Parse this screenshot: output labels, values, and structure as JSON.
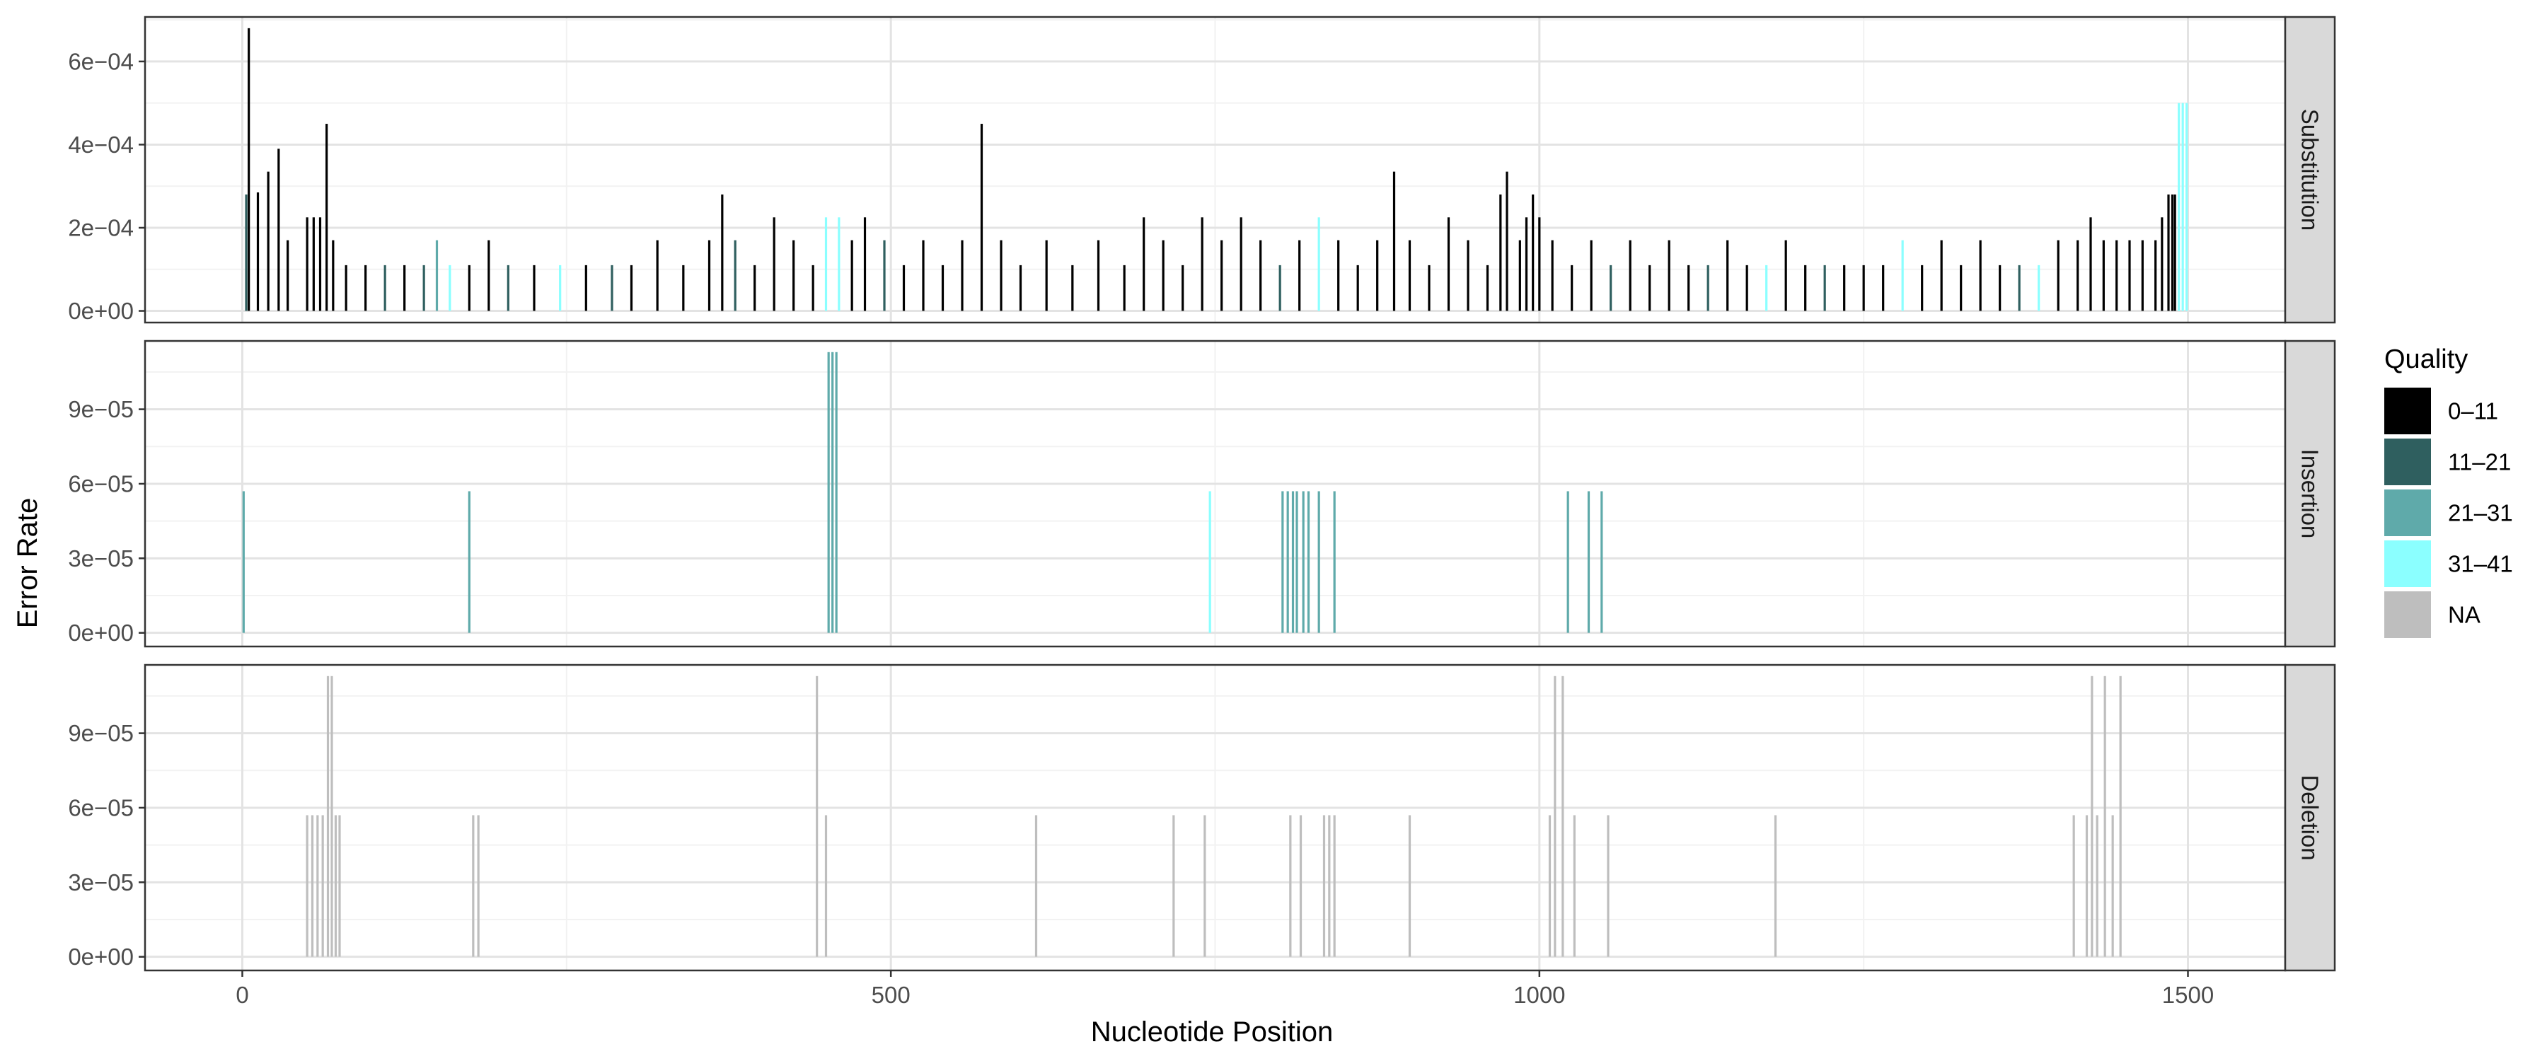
{
  "chart_data": {
    "type": "bar",
    "xlabel": "Nucleotide Position",
    "ylabel": "Error Rate",
    "xlim": [
      -75,
      1575
    ],
    "x_ticks": [
      0,
      500,
      1000,
      1500
    ],
    "x_tick_labels": [
      "0",
      "500",
      "1000",
      "1500"
    ],
    "grid": true,
    "legend": {
      "title": "Quality",
      "placement": "right",
      "entries": [
        {
          "label": "0–11",
          "color": "#000000"
        },
        {
          "label": "11–21",
          "color": "#2F5F5F"
        },
        {
          "label": "21–31",
          "color": "#5FAAAA"
        },
        {
          "label": "31–41",
          "color": "#8BFFFF"
        },
        {
          "label": "NA",
          "color": "#BEBEBE"
        }
      ]
    },
    "panels": [
      {
        "strip": "Substitution",
        "ylim": [
          -2.8e-05,
          0.000707
        ],
        "y_ticks": [
          0,
          0.0002,
          0.0004,
          0.0006
        ],
        "y_tick_labels": [
          "0e+00",
          "2e−04",
          "4e−04",
          "6e−04"
        ],
        "bars": [
          {
            "x": 5,
            "y": 0.00068,
            "q": 0
          },
          {
            "x": 12,
            "y": 0.000285,
            "q": 0
          },
          {
            "x": 20,
            "y": 0.000335,
            "q": 0
          },
          {
            "x": 28,
            "y": 0.00039,
            "q": 0
          },
          {
            "x": 65,
            "y": 0.00045,
            "q": 0
          },
          {
            "x": 3,
            "y": 0.00028,
            "q": 1
          },
          {
            "x": 35,
            "y": 0.00017,
            "q": 0
          },
          {
            "x": 50,
            "y": 0.000225,
            "q": 0
          },
          {
            "x": 55,
            "y": 0.000225,
            "q": 0
          },
          {
            "x": 60,
            "y": 0.000225,
            "q": 0
          },
          {
            "x": 70,
            "y": 0.00017,
            "q": 0
          },
          {
            "x": 80,
            "y": 0.00011,
            "q": 0
          },
          {
            "x": 95,
            "y": 0.00011,
            "q": 0
          },
          {
            "x": 110,
            "y": 0.00011,
            "q": 1
          },
          {
            "x": 125,
            "y": 0.00011,
            "q": 0
          },
          {
            "x": 140,
            "y": 0.00011,
            "q": 1
          },
          {
            "x": 150,
            "y": 0.00017,
            "q": 2
          },
          {
            "x": 160,
            "y": 0.00011,
            "q": 3
          },
          {
            "x": 175,
            "y": 0.00011,
            "q": 0
          },
          {
            "x": 190,
            "y": 0.00017,
            "q": 0
          },
          {
            "x": 205,
            "y": 0.00011,
            "q": 1
          },
          {
            "x": 225,
            "y": 0.00011,
            "q": 0
          },
          {
            "x": 245,
            "y": 0.00011,
            "q": 3
          },
          {
            "x": 265,
            "y": 0.00011,
            "q": 0
          },
          {
            "x": 285,
            "y": 0.00011,
            "q": 1
          },
          {
            "x": 300,
            "y": 0.00011,
            "q": 0
          },
          {
            "x": 320,
            "y": 0.00017,
            "q": 0
          },
          {
            "x": 340,
            "y": 0.00011,
            "q": 0
          },
          {
            "x": 360,
            "y": 0.00017,
            "q": 0
          },
          {
            "x": 370,
            "y": 0.00028,
            "q": 0
          },
          {
            "x": 380,
            "y": 0.00017,
            "q": 1
          },
          {
            "x": 395,
            "y": 0.00011,
            "q": 0
          },
          {
            "x": 410,
            "y": 0.000225,
            "q": 0
          },
          {
            "x": 425,
            "y": 0.00017,
            "q": 0
          },
          {
            "x": 440,
            "y": 0.00011,
            "q": 0
          },
          {
            "x": 450,
            "y": 0.000225,
            "q": 3
          },
          {
            "x": 460,
            "y": 0.000225,
            "q": 3
          },
          {
            "x": 470,
            "y": 0.00017,
            "q": 0
          },
          {
            "x": 480,
            "y": 0.000225,
            "q": 0
          },
          {
            "x": 495,
            "y": 0.00017,
            "q": 1
          },
          {
            "x": 510,
            "y": 0.00011,
            "q": 0
          },
          {
            "x": 525,
            "y": 0.00017,
            "q": 0
          },
          {
            "x": 540,
            "y": 0.00011,
            "q": 0
          },
          {
            "x": 555,
            "y": 0.00017,
            "q": 0
          },
          {
            "x": 570,
            "y": 0.00045,
            "q": 0
          },
          {
            "x": 585,
            "y": 0.00017,
            "q": 0
          },
          {
            "x": 600,
            "y": 0.00011,
            "q": 0
          },
          {
            "x": 620,
            "y": 0.00017,
            "q": 0
          },
          {
            "x": 640,
            "y": 0.00011,
            "q": 0
          },
          {
            "x": 660,
            "y": 0.00017,
            "q": 0
          },
          {
            "x": 680,
            "y": 0.00011,
            "q": 0
          },
          {
            "x": 695,
            "y": 0.000225,
            "q": 0
          },
          {
            "x": 710,
            "y": 0.00017,
            "q": 0
          },
          {
            "x": 725,
            "y": 0.00011,
            "q": 0
          },
          {
            "x": 740,
            "y": 0.000225,
            "q": 0
          },
          {
            "x": 755,
            "y": 0.00017,
            "q": 0
          },
          {
            "x": 770,
            "y": 0.000225,
            "q": 0
          },
          {
            "x": 785,
            "y": 0.00017,
            "q": 0
          },
          {
            "x": 800,
            "y": 0.00011,
            "q": 1
          },
          {
            "x": 815,
            "y": 0.00017,
            "q": 0
          },
          {
            "x": 830,
            "y": 0.000225,
            "q": 3
          },
          {
            "x": 845,
            "y": 0.00017,
            "q": 0
          },
          {
            "x": 860,
            "y": 0.00011,
            "q": 0
          },
          {
            "x": 875,
            "y": 0.00017,
            "q": 0
          },
          {
            "x": 888,
            "y": 0.000335,
            "q": 0
          },
          {
            "x": 900,
            "y": 0.00017,
            "q": 0
          },
          {
            "x": 915,
            "y": 0.00011,
            "q": 0
          },
          {
            "x": 930,
            "y": 0.000225,
            "q": 0
          },
          {
            "x": 945,
            "y": 0.00017,
            "q": 0
          },
          {
            "x": 960,
            "y": 0.00011,
            "q": 0
          },
          {
            "x": 970,
            "y": 0.00028,
            "q": 0
          },
          {
            "x": 975,
            "y": 0.000335,
            "q": 0
          },
          {
            "x": 985,
            "y": 0.00017,
            "q": 0
          },
          {
            "x": 990,
            "y": 0.000225,
            "q": 0
          },
          {
            "x": 995,
            "y": 0.00028,
            "q": 0
          },
          {
            "x": 1000,
            "y": 0.000225,
            "q": 0
          },
          {
            "x": 1010,
            "y": 0.00017,
            "q": 0
          },
          {
            "x": 1025,
            "y": 0.00011,
            "q": 0
          },
          {
            "x": 1040,
            "y": 0.00017,
            "q": 0
          },
          {
            "x": 1055,
            "y": 0.00011,
            "q": 1
          },
          {
            "x": 1070,
            "y": 0.00017,
            "q": 0
          },
          {
            "x": 1085,
            "y": 0.00011,
            "q": 0
          },
          {
            "x": 1100,
            "y": 0.00017,
            "q": 0
          },
          {
            "x": 1115,
            "y": 0.00011,
            "q": 0
          },
          {
            "x": 1130,
            "y": 0.00011,
            "q": 1
          },
          {
            "x": 1145,
            "y": 0.00017,
            "q": 0
          },
          {
            "x": 1160,
            "y": 0.00011,
            "q": 0
          },
          {
            "x": 1175,
            "y": 0.00011,
            "q": 3
          },
          {
            "x": 1190,
            "y": 0.00017,
            "q": 0
          },
          {
            "x": 1205,
            "y": 0.00011,
            "q": 0
          },
          {
            "x": 1220,
            "y": 0.00011,
            "q": 1
          },
          {
            "x": 1235,
            "y": 0.00011,
            "q": 0
          },
          {
            "x": 1250,
            "y": 0.00011,
            "q": 0
          },
          {
            "x": 1265,
            "y": 0.00011,
            "q": 0
          },
          {
            "x": 1280,
            "y": 0.00017,
            "q": 3
          },
          {
            "x": 1295,
            "y": 0.00011,
            "q": 0
          },
          {
            "x": 1310,
            "y": 0.00017,
            "q": 0
          },
          {
            "x": 1325,
            "y": 0.00011,
            "q": 0
          },
          {
            "x": 1340,
            "y": 0.00017,
            "q": 0
          },
          {
            "x": 1355,
            "y": 0.00011,
            "q": 0
          },
          {
            "x": 1370,
            "y": 0.00011,
            "q": 1
          },
          {
            "x": 1385,
            "y": 0.00011,
            "q": 3
          },
          {
            "x": 1400,
            "y": 0.00017,
            "q": 0
          },
          {
            "x": 1415,
            "y": 0.00017,
            "q": 0
          },
          {
            "x": 1425,
            "y": 0.000225,
            "q": 0
          },
          {
            "x": 1435,
            "y": 0.00017,
            "q": 0
          },
          {
            "x": 1445,
            "y": 0.00017,
            "q": 0
          },
          {
            "x": 1455,
            "y": 0.00017,
            "q": 0
          },
          {
            "x": 1465,
            "y": 0.00017,
            "q": 0
          },
          {
            "x": 1475,
            "y": 0.00017,
            "q": 0
          },
          {
            "x": 1480,
            "y": 0.000225,
            "q": 0
          },
          {
            "x": 1485,
            "y": 0.00028,
            "q": 0
          },
          {
            "x": 1488,
            "y": 0.00028,
            "q": 0
          },
          {
            "x": 1490,
            "y": 0.00028,
            "q": 0
          },
          {
            "x": 1493,
            "y": 0.0005,
            "q": 3
          },
          {
            "x": 1496,
            "y": 0.0005,
            "q": 3
          },
          {
            "x": 1499,
            "y": 0.0005,
            "q": 3
          }
        ]
      },
      {
        "strip": "Insertion",
        "ylim": [
          -5.5e-06,
          0.0001175
        ],
        "y_ticks": [
          0,
          3e-05,
          6e-05,
          9e-05
        ],
        "y_tick_labels": [
          "0e+00",
          "3e−05",
          "6e−05",
          "9e−05"
        ],
        "bars": [
          {
            "x": 1,
            "y": 5.7e-05,
            "q": 2
          },
          {
            "x": 175,
            "y": 5.7e-05,
            "q": 2
          },
          {
            "x": 452,
            "y": 0.000113,
            "q": 2
          },
          {
            "x": 455,
            "y": 0.000113,
            "q": 2
          },
          {
            "x": 458,
            "y": 0.000113,
            "q": 2
          },
          {
            "x": 746,
            "y": 5.7e-05,
            "q": 3
          },
          {
            "x": 802,
            "y": 5.7e-05,
            "q": 2
          },
          {
            "x": 806,
            "y": 5.7e-05,
            "q": 2
          },
          {
            "x": 810,
            "y": 5.7e-05,
            "q": 2
          },
          {
            "x": 813,
            "y": 5.7e-05,
            "q": 2
          },
          {
            "x": 818,
            "y": 5.7e-05,
            "q": 2
          },
          {
            "x": 822,
            "y": 5.7e-05,
            "q": 2
          },
          {
            "x": 830,
            "y": 5.7e-05,
            "q": 2
          },
          {
            "x": 842,
            "y": 5.7e-05,
            "q": 2
          },
          {
            "x": 1022,
            "y": 5.7e-05,
            "q": 2
          },
          {
            "x": 1038,
            "y": 5.7e-05,
            "q": 2
          },
          {
            "x": 1048,
            "y": 5.7e-05,
            "q": 2
          }
        ]
      },
      {
        "strip": "Deletion",
        "ylim": [
          -5.5e-06,
          0.0001175
        ],
        "y_ticks": [
          0,
          3e-05,
          6e-05,
          9e-05
        ],
        "y_tick_labels": [
          "0e+00",
          "3e−05",
          "6e−05",
          "9e−05"
        ],
        "bars": [
          {
            "x": 50,
            "y": 5.7e-05,
            "q": 4
          },
          {
            "x": 54,
            "y": 5.7e-05,
            "q": 4
          },
          {
            "x": 58,
            "y": 5.7e-05,
            "q": 4
          },
          {
            "x": 62,
            "y": 5.7e-05,
            "q": 4
          },
          {
            "x": 66,
            "y": 0.000113,
            "q": 4
          },
          {
            "x": 69,
            "y": 0.000113,
            "q": 4
          },
          {
            "x": 72,
            "y": 5.7e-05,
            "q": 4
          },
          {
            "x": 75,
            "y": 5.7e-05,
            "q": 4
          },
          {
            "x": 178,
            "y": 5.7e-05,
            "q": 4
          },
          {
            "x": 182,
            "y": 5.7e-05,
            "q": 4
          },
          {
            "x": 443,
            "y": 0.000113,
            "q": 4
          },
          {
            "x": 450,
            "y": 5.7e-05,
            "q": 4
          },
          {
            "x": 612,
            "y": 5.7e-05,
            "q": 4
          },
          {
            "x": 718,
            "y": 5.7e-05,
            "q": 4
          },
          {
            "x": 742,
            "y": 5.7e-05,
            "q": 4
          },
          {
            "x": 808,
            "y": 5.7e-05,
            "q": 4
          },
          {
            "x": 816,
            "y": 5.7e-05,
            "q": 4
          },
          {
            "x": 834,
            "y": 5.7e-05,
            "q": 4
          },
          {
            "x": 838,
            "y": 5.7e-05,
            "q": 4
          },
          {
            "x": 842,
            "y": 5.7e-05,
            "q": 4
          },
          {
            "x": 900,
            "y": 5.7e-05,
            "q": 4
          },
          {
            "x": 1008,
            "y": 5.7e-05,
            "q": 4
          },
          {
            "x": 1012,
            "y": 0.000113,
            "q": 4
          },
          {
            "x": 1018,
            "y": 0.000113,
            "q": 4
          },
          {
            "x": 1027,
            "y": 5.7e-05,
            "q": 4
          },
          {
            "x": 1053,
            "y": 5.7e-05,
            "q": 4
          },
          {
            "x": 1182,
            "y": 5.7e-05,
            "q": 4
          },
          {
            "x": 1412,
            "y": 5.7e-05,
            "q": 4
          },
          {
            "x": 1422,
            "y": 5.7e-05,
            "q": 4
          },
          {
            "x": 1426,
            "y": 0.000113,
            "q": 4
          },
          {
            "x": 1430,
            "y": 5.7e-05,
            "q": 4
          },
          {
            "x": 1436,
            "y": 0.000113,
            "q": 4
          },
          {
            "x": 1442,
            "y": 5.7e-05,
            "q": 4
          },
          {
            "x": 1448,
            "y": 0.000113,
            "q": 4
          }
        ]
      }
    ]
  }
}
